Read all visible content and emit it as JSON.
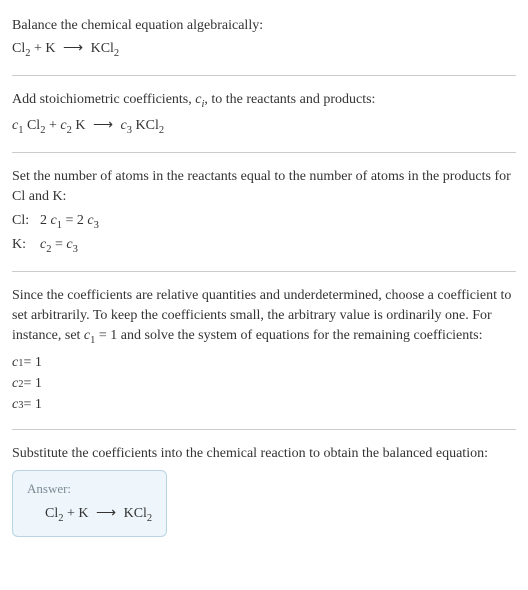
{
  "colors": {
    "text": "#333333",
    "divider": "#cccccc",
    "answer_bg": "#eef6fb",
    "answer_border": "#b8d4e3",
    "answer_label": "#7a8a94"
  },
  "typography": {
    "base_fontsize": 14,
    "answer_label_fontsize": 13,
    "font_family": "Georgia, Times New Roman, serif"
  },
  "section1": {
    "intro": "Balance the chemical equation algebraically:",
    "eq_lhs1": "Cl",
    "eq_lhs1_sub": "2",
    "eq_plus": " + K ",
    "eq_arrow": "⟶",
    "eq_rhs": " KCl",
    "eq_rhs_sub": "2"
  },
  "section2": {
    "intro_a": "Add stoichiometric coefficients, ",
    "intro_ci": "c",
    "intro_ci_sub": "i",
    "intro_b": ", to the reactants and products:",
    "c1": "c",
    "c1_sub": "1",
    "sp1": " Cl",
    "cl_sub": "2",
    "plus1": " + ",
    "c2": "c",
    "c2_sub": "2",
    "sp2": " K ",
    "arrow": "⟶",
    "sp3": " ",
    "c3": "c",
    "c3_sub": "3",
    "sp4": " KCl",
    "kcl_sub": "2"
  },
  "section3": {
    "intro": "Set the number of atoms in the reactants equal to the number of atoms in the products for Cl and K:",
    "rows": [
      {
        "label": "Cl:",
        "lhs_coef": "2",
        "lhs_c": "c",
        "lhs_sub": "1",
        "eq": " = ",
        "rhs_coef": "2",
        "rhs_c": "c",
        "rhs_sub": "3"
      },
      {
        "label": "K:",
        "lhs_coef": "",
        "lhs_c": "c",
        "lhs_sub": "2",
        "eq": " = ",
        "rhs_coef": "",
        "rhs_c": "c",
        "rhs_sub": "3"
      }
    ]
  },
  "section4": {
    "intro_a": "Since the coefficients are relative quantities and underdetermined, choose a coefficient to set arbitrarily. To keep the coefficients small, the arbitrary value is ordinarily one. For instance, set ",
    "c1": "c",
    "c1_sub": "1",
    "intro_b": " = 1 and solve the system of equations for the remaining coefficients:",
    "results": [
      {
        "c": "c",
        "sub": "1",
        "val": " = 1"
      },
      {
        "c": "c",
        "sub": "2",
        "val": " = 1"
      },
      {
        "c": "c",
        "sub": "3",
        "val": " = 1"
      }
    ]
  },
  "section5": {
    "intro": "Substitute the coefficients into the chemical reaction to obtain the balanced equation:",
    "answer_label": "Answer:",
    "eq_lhs1": "Cl",
    "eq_lhs1_sub": "2",
    "eq_plus": " + K ",
    "eq_arrow": "⟶",
    "eq_rhs": " KCl",
    "eq_rhs_sub": "2"
  }
}
